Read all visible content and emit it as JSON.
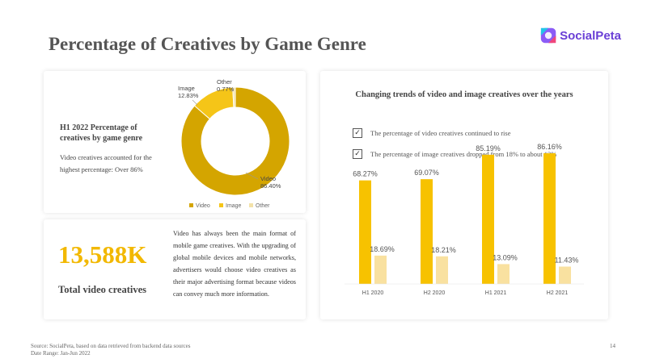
{
  "page": {
    "title": "Percentage of Creatives by Game Genre",
    "brand": "SocialPeta",
    "footer_source": "Source: SocialPeta, based on data retrieved from backend data sources",
    "footer_range": "Date Range: Jan-Jun 2022",
    "page_number": "14"
  },
  "donut_card": {
    "heading": "H1 2022 Percentage of creatives by game genre",
    "description": "Video creatives accounted for the highest percentage: Over 86%"
  },
  "total_card": {
    "value": "13,588K",
    "label": "Total video creatives",
    "paragraph": "Video has always been the main format of mobile game creatives. With the upgrading of global mobile devices and mobile networks, advertisers would choose video creatives as their major advertising format because videos can convey much more information."
  },
  "bar_card": {
    "title": "Changing trends of video and image creatives over the years",
    "check1": "The percentage of video creatives continued to rise",
    "check2": "The percentage of image creatives dropped from 18% to about 12%",
    "check_glyph": "✓"
  },
  "chart_data": [
    {
      "type": "pie",
      "donut": true,
      "slices": [
        {
          "label": "Video",
          "value": 86.4,
          "display": "86.40%",
          "color": "#d4a500"
        },
        {
          "label": "Image",
          "value": 12.83,
          "display": "12.83%",
          "color": "#f5c518"
        },
        {
          "label": "Other",
          "value": 0.77,
          "display": "0.77%",
          "color": "#f3e2a9"
        }
      ],
      "legend": [
        "Video",
        "Image",
        "Other"
      ],
      "legend_placement": "bottom"
    },
    {
      "type": "bar",
      "categories": [
        "H1 2020",
        "H2 2020",
        "H1 2021",
        "H2 2021"
      ],
      "series": [
        {
          "values": [
            68.27,
            69.07,
            85.19,
            86.16
          ],
          "labels": [
            "68.27%",
            "69.07%",
            "85.19%",
            "86.16%"
          ],
          "color": "#f7c200"
        },
        {
          "values": [
            18.69,
            18.21,
            13.09,
            11.43
          ],
          "labels": [
            "18.69%",
            "18.21%",
            "13.09%",
            "11.43%"
          ],
          "color": "#f9e1a0"
        }
      ],
      "ylim": [
        0,
        100
      ],
      "grid": false
    }
  ]
}
